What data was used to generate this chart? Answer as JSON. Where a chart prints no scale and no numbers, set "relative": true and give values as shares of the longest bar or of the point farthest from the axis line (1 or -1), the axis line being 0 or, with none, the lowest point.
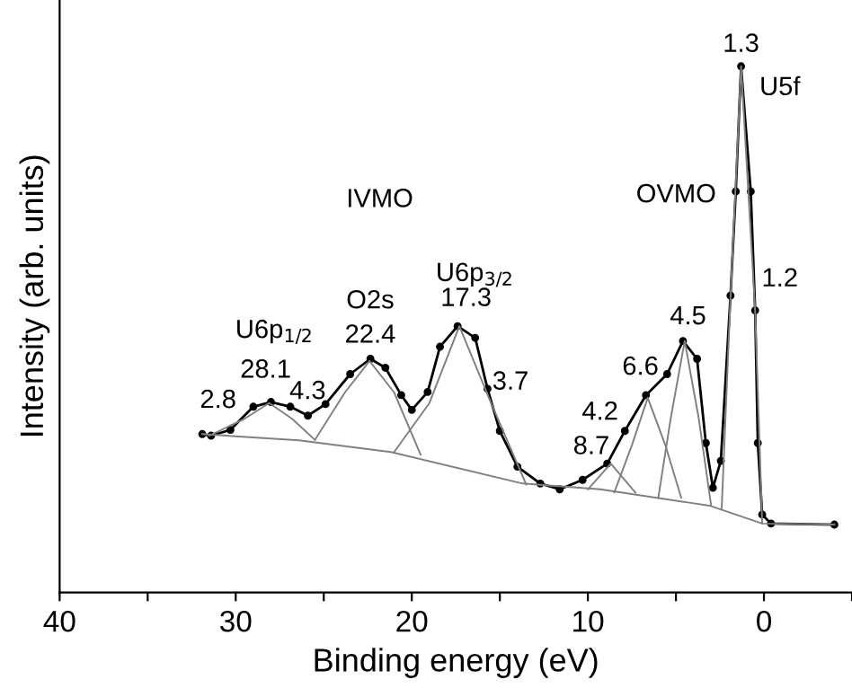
{
  "chart_data": {
    "type": "line",
    "relative": true,
    "xlabel": "Binding energy (eV)",
    "ylabel": "Intensity (arb. units)",
    "xlim": [
      40,
      -5
    ],
    "xticks": [
      40,
      {
        "value": 35,
        "label": null
      },
      30,
      {
        "value": 25,
        "label": null
      },
      20,
      {
        "value": 15,
        "label": null
      },
      10,
      {
        "value": 5,
        "label": null
      },
      0,
      {
        "value": -5,
        "label": null
      }
    ],
    "grid": false,
    "series": [
      {
        "color": "#000000",
        "marker": "circle",
        "x": [
          31.9,
          31.4,
          30.3,
          29.0,
          28.0,
          26.9,
          25.9,
          24.9,
          23.5,
          22.35,
          21.5,
          20.6,
          20.0,
          19.1,
          18.4,
          17.4,
          16.4,
          15.7,
          15.0,
          14.0,
          12.7,
          11.6,
          10.3,
          8.9,
          7.9,
          6.7,
          5.5,
          4.6,
          3.8,
          3.3,
          2.9,
          2.45,
          1.9,
          1.6,
          1.3,
          0.75,
          0.5,
          0.35,
          0.1,
          -0.4,
          -4.0
        ],
        "values": [
          0.301,
          0.298,
          0.309,
          0.353,
          0.362,
          0.353,
          0.336,
          0.358,
          0.415,
          0.444,
          0.427,
          0.375,
          0.347,
          0.381,
          0.467,
          0.506,
          0.484,
          0.387,
          0.307,
          0.239,
          0.207,
          0.196,
          0.214,
          0.245,
          0.307,
          0.375,
          0.415,
          0.478,
          0.444,
          0.284,
          0.199,
          0.25,
          0.564,
          0.762,
          1.0,
          0.762,
          0.536,
          0.284,
          0.148,
          0.131,
          0.129
        ]
      },
      {
        "color": "#808080",
        "marker": "none",
        "x": [
          31.9,
          26.4,
          21.2,
          13.7,
          9.3,
          3.1,
          0.1,
          -4.0
        ],
        "values": [
          0.301,
          0.289,
          0.267,
          0.207,
          0.196,
          0.165,
          0.131,
          0.129
        ]
      },
      {
        "color": "#808080",
        "marker": "none",
        "x": [
          31.5,
          29.5,
          28.1,
          26.8,
          25.5
        ],
        "values": [
          0.298,
          0.33,
          0.36,
          0.33,
          0.29
        ]
      },
      {
        "color": "#808080",
        "marker": "none",
        "x": [
          25.5,
          23.8,
          22.4,
          21.0,
          19.5
        ],
        "values": [
          0.29,
          0.38,
          0.44,
          0.38,
          0.262
        ]
      },
      {
        "color": "#808080",
        "marker": "none",
        "x": [
          21.0,
          19.0,
          17.3,
          15.5,
          13.5
        ],
        "values": [
          0.267,
          0.36,
          0.506,
          0.36,
          0.205
        ]
      },
      {
        "color": "#808080",
        "marker": "none",
        "x": [
          10.0,
          8.7,
          7.3
        ],
        "values": [
          0.196,
          0.245,
          0.19
        ]
      },
      {
        "color": "#808080",
        "marker": "none",
        "x": [
          8.5,
          7.5,
          6.6,
          5.6,
          4.7
        ],
        "values": [
          0.19,
          0.28,
          0.37,
          0.28,
          0.18
        ]
      },
      {
        "color": "#808080",
        "marker": "none",
        "x": [
          6.0,
          5.3,
          4.5,
          3.7,
          3.0
        ],
        "values": [
          0.18,
          0.33,
          0.478,
          0.33,
          0.165
        ]
      },
      {
        "color": "#808080",
        "marker": "none",
        "x": [
          2.4,
          1.9,
          1.3,
          0.5,
          0.1
        ],
        "values": [
          0.16,
          0.56,
          1.0,
          0.536,
          0.131
        ]
      }
    ],
    "annotations": [
      "1.3",
      "U5f",
      "1.2",
      "OVMO",
      "IVMO",
      "U6p$_{3/2}$",
      "17.3",
      "O2s",
      "22.4",
      "U6p$_{1/2}$",
      "28.1",
      "4.3",
      "2.8",
      "3.7",
      "4.2",
      "8.7",
      "6.6",
      "4.5"
    ]
  }
}
